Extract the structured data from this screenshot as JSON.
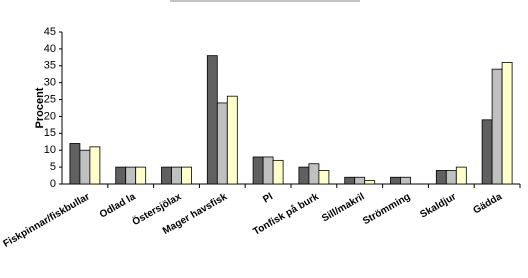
{
  "chart_data": {
    "type": "bar",
    "y_label": "Procent",
    "categories": [
      "Fiskpinnar/fiskbullar",
      "Odlad la",
      "Östersjölax",
      "Mager havsfisk",
      "Pl",
      "Tonfisk på burk",
      "Sill/makril",
      "Strömming",
      "Skaldjur",
      "Gädda"
    ],
    "series": [
      {
        "color": "#606060",
        "values": [
          12,
          5,
          5,
          38,
          8,
          5,
          2,
          2,
          4,
          19
        ]
      },
      {
        "color": "#c0c0c0",
        "values": [
          10,
          5,
          5,
          24,
          8,
          6,
          2,
          2,
          4,
          34
        ]
      },
      {
        "color": "#ffffcc",
        "values": [
          11,
          5,
          5,
          26,
          7,
          4,
          1,
          0,
          5,
          36
        ]
      }
    ],
    "ylim": [
      0,
      45
    ],
    "yticks": [
      0,
      5,
      10,
      15,
      20,
      25,
      30,
      35,
      40,
      45
    ],
    "grid": false
  }
}
